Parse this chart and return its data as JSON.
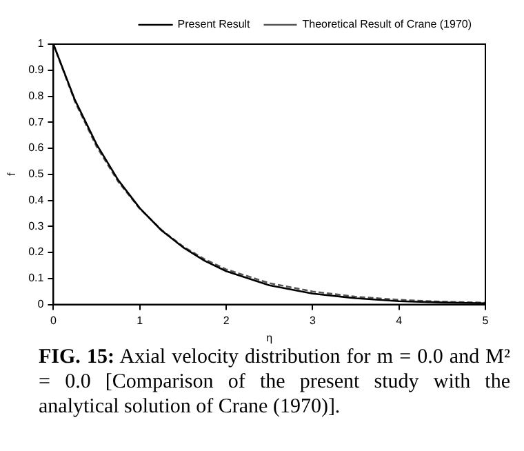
{
  "chart_data": {
    "type": "line",
    "xlabel": "η",
    "ylabel": "f",
    "x": [
      0,
      0.25,
      0.5,
      0.75,
      1,
      1.25,
      1.5,
      1.75,
      2,
      2.5,
      3,
      3.5,
      4,
      4.5,
      5
    ],
    "series": [
      {
        "name": "Present Result",
        "color": "#000000",
        "line_style": "solid",
        "values": [
          1,
          0.785,
          0.615,
          0.478,
          0.37,
          0.285,
          0.22,
          0.168,
          0.128,
          0.074,
          0.042,
          0.024,
          0.013,
          0.008,
          0.005
        ]
      },
      {
        "name": "Theoretical Result of Crane (1970)",
        "color": "#555555",
        "line_style": "dashed",
        "values": [
          1,
          0.779,
          0.607,
          0.472,
          0.368,
          0.287,
          0.223,
          0.174,
          0.135,
          0.082,
          0.05,
          0.03,
          0.018,
          0.011,
          0.007
        ]
      }
    ],
    "xlim": [
      0,
      5
    ],
    "xticks": [
      0,
      1,
      2,
      3,
      4,
      5
    ],
    "ylim": [
      0,
      1
    ],
    "yticks": [
      0,
      0.1,
      0.2,
      0.3,
      0.4,
      0.5,
      0.6,
      0.7,
      0.8,
      0.9,
      1
    ],
    "grid": false,
    "legend": "top right",
    "marker": "none",
    "annotations": [
      "FIG. 15: Axial velocity distribution for m = 0.0 and M² = 0.0 [Comparison of the present study with the analytical solution of Crane (1970)]."
    ]
  }
}
